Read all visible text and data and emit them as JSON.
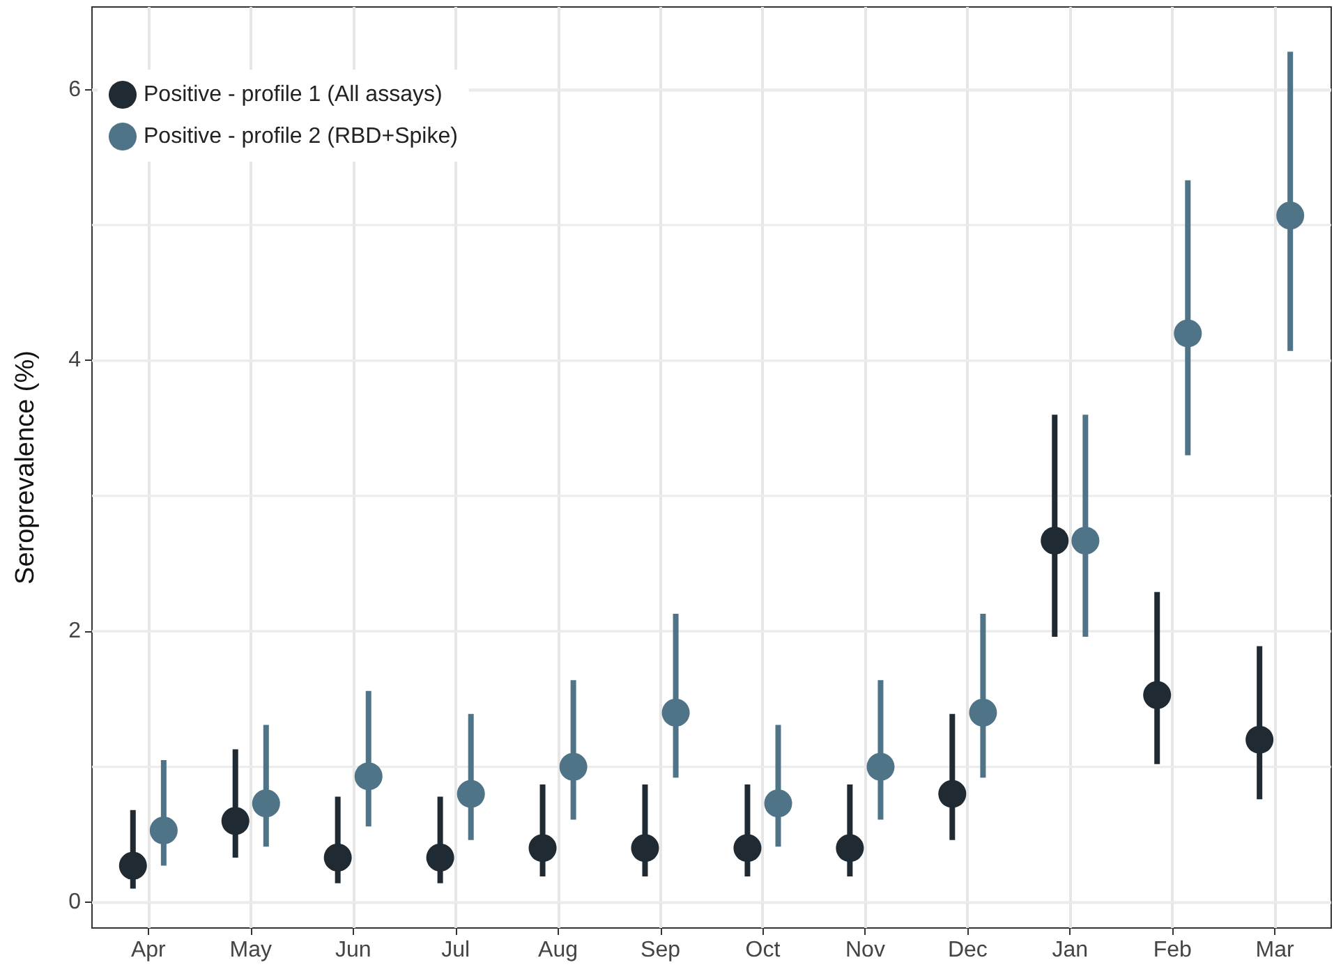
{
  "chart_data": {
    "type": "scatter",
    "ylabel": "Seroprevalence (%)",
    "categories": [
      "Apr",
      "May",
      "Jun",
      "Jul",
      "Aug",
      "Sep",
      "Oct",
      "Nov",
      "Dec",
      "Jan",
      "Feb",
      "Mar"
    ],
    "series": [
      {
        "name": "Positive - profile 1 (All assays)",
        "color": "#1f2a33",
        "values": [
          0.27,
          0.6,
          0.33,
          0.33,
          0.4,
          0.4,
          0.4,
          0.4,
          0.8,
          2.67,
          1.53,
          1.2
        ],
        "errors": [
          [
            0.1,
            0.68
          ],
          [
            0.33,
            1.13
          ],
          [
            0.14,
            0.78
          ],
          [
            0.14,
            0.78
          ],
          [
            0.19,
            0.87
          ],
          [
            0.19,
            0.87
          ],
          [
            0.19,
            0.87
          ],
          [
            0.19,
            0.87
          ],
          [
            0.46,
            1.39
          ],
          [
            1.96,
            3.6
          ],
          [
            1.02,
            2.29
          ],
          [
            0.76,
            1.89
          ]
        ]
      },
      {
        "name": "Positive - profile 2 (RBD+Spike)",
        "color": "#507487",
        "values": [
          0.53,
          0.73,
          0.93,
          0.8,
          1.0,
          1.4,
          0.73,
          1.0,
          1.4,
          2.67,
          4.2,
          5.07
        ],
        "errors": [
          [
            0.27,
            1.05
          ],
          [
            0.41,
            1.31
          ],
          [
            0.56,
            1.56
          ],
          [
            0.46,
            1.39
          ],
          [
            0.61,
            1.64
          ],
          [
            0.92,
            2.13
          ],
          [
            0.41,
            1.31
          ],
          [
            0.61,
            1.64
          ],
          [
            0.92,
            2.13
          ],
          [
            1.96,
            3.6
          ],
          [
            3.3,
            5.33
          ],
          [
            4.07,
            6.28
          ]
        ]
      }
    ],
    "ylim": [
      -0.19,
      6.61
    ],
    "yticks": [
      0,
      {
        "value": 1,
        "label": null
      },
      2,
      {
        "value": 3,
        "label": null
      },
      4,
      {
        "value": 5,
        "label": null
      },
      6
    ],
    "grid": true,
    "legend": "top left",
    "marker": "circle"
  }
}
